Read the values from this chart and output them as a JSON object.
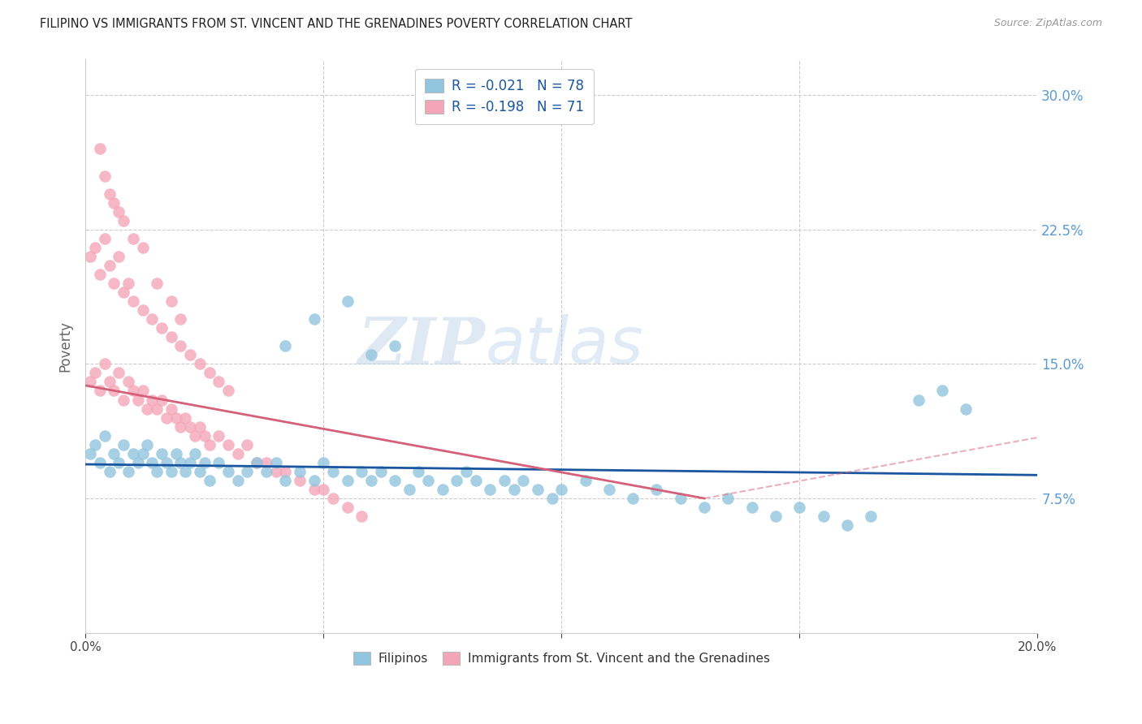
{
  "title": "FILIPINO VS IMMIGRANTS FROM ST. VINCENT AND THE GRENADINES POVERTY CORRELATION CHART",
  "source": "Source: ZipAtlas.com",
  "ylabel": "Poverty",
  "yaxis_labels": [
    "7.5%",
    "15.0%",
    "22.5%",
    "30.0%"
  ],
  "yaxis_values": [
    0.075,
    0.15,
    0.225,
    0.3
  ],
  "xlim": [
    0.0,
    0.2
  ],
  "ylim": [
    0.0,
    0.32
  ],
  "watermark_zip": "ZIP",
  "watermark_atlas": "atlas",
  "legend_r1": "-0.021",
  "legend_n1": "78",
  "legend_r2": "-0.198",
  "legend_n2": "71",
  "color_blue": "#92C5DE",
  "color_pink": "#F4A6B8",
  "color_blue_line": "#1A56A0",
  "color_pink_line": "#D4607A",
  "label1": "Filipinos",
  "label2": "Immigrants from St. Vincent and the Grenadines",
  "blue_x": [
    0.001,
    0.002,
    0.003,
    0.004,
    0.005,
    0.006,
    0.007,
    0.008,
    0.009,
    0.01,
    0.011,
    0.012,
    0.013,
    0.014,
    0.015,
    0.016,
    0.017,
    0.018,
    0.019,
    0.02,
    0.021,
    0.022,
    0.023,
    0.024,
    0.025,
    0.026,
    0.028,
    0.03,
    0.032,
    0.034,
    0.036,
    0.038,
    0.04,
    0.042,
    0.045,
    0.048,
    0.05,
    0.052,
    0.055,
    0.058,
    0.06,
    0.062,
    0.065,
    0.068,
    0.07,
    0.072,
    0.075,
    0.078,
    0.08,
    0.082,
    0.085,
    0.088,
    0.09,
    0.092,
    0.095,
    0.098,
    0.1,
    0.105,
    0.11,
    0.115,
    0.12,
    0.125,
    0.13,
    0.135,
    0.14,
    0.145,
    0.15,
    0.155,
    0.16,
    0.165,
    0.042,
    0.048,
    0.055,
    0.06,
    0.065,
    0.175,
    0.18,
    0.185
  ],
  "blue_y": [
    0.1,
    0.105,
    0.095,
    0.11,
    0.09,
    0.1,
    0.095,
    0.105,
    0.09,
    0.1,
    0.095,
    0.1,
    0.105,
    0.095,
    0.09,
    0.1,
    0.095,
    0.09,
    0.1,
    0.095,
    0.09,
    0.095,
    0.1,
    0.09,
    0.095,
    0.085,
    0.095,
    0.09,
    0.085,
    0.09,
    0.095,
    0.09,
    0.095,
    0.085,
    0.09,
    0.085,
    0.095,
    0.09,
    0.085,
    0.09,
    0.085,
    0.09,
    0.085,
    0.08,
    0.09,
    0.085,
    0.08,
    0.085,
    0.09,
    0.085,
    0.08,
    0.085,
    0.08,
    0.085,
    0.08,
    0.075,
    0.08,
    0.085,
    0.08,
    0.075,
    0.08,
    0.075,
    0.07,
    0.075,
    0.07,
    0.065,
    0.07,
    0.065,
    0.06,
    0.065,
    0.16,
    0.175,
    0.185,
    0.155,
    0.16,
    0.13,
    0.135,
    0.125
  ],
  "pink_x": [
    0.001,
    0.002,
    0.003,
    0.004,
    0.005,
    0.006,
    0.007,
    0.008,
    0.009,
    0.01,
    0.011,
    0.012,
    0.013,
    0.014,
    0.015,
    0.016,
    0.017,
    0.018,
    0.019,
    0.02,
    0.021,
    0.022,
    0.023,
    0.024,
    0.025,
    0.026,
    0.028,
    0.03,
    0.032,
    0.034,
    0.036,
    0.038,
    0.04,
    0.042,
    0.045,
    0.048,
    0.05,
    0.052,
    0.055,
    0.058,
    0.001,
    0.002,
    0.003,
    0.004,
    0.005,
    0.006,
    0.007,
    0.008,
    0.009,
    0.01,
    0.012,
    0.014,
    0.016,
    0.018,
    0.02,
    0.022,
    0.024,
    0.026,
    0.028,
    0.03,
    0.003,
    0.004,
    0.005,
    0.006,
    0.007,
    0.008,
    0.01,
    0.012,
    0.015,
    0.018,
    0.02
  ],
  "pink_y": [
    0.14,
    0.145,
    0.135,
    0.15,
    0.14,
    0.135,
    0.145,
    0.13,
    0.14,
    0.135,
    0.13,
    0.135,
    0.125,
    0.13,
    0.125,
    0.13,
    0.12,
    0.125,
    0.12,
    0.115,
    0.12,
    0.115,
    0.11,
    0.115,
    0.11,
    0.105,
    0.11,
    0.105,
    0.1,
    0.105,
    0.095,
    0.095,
    0.09,
    0.09,
    0.085,
    0.08,
    0.08,
    0.075,
    0.07,
    0.065,
    0.21,
    0.215,
    0.2,
    0.22,
    0.205,
    0.195,
    0.21,
    0.19,
    0.195,
    0.185,
    0.18,
    0.175,
    0.17,
    0.165,
    0.16,
    0.155,
    0.15,
    0.145,
    0.14,
    0.135,
    0.27,
    0.255,
    0.245,
    0.24,
    0.235,
    0.23,
    0.22,
    0.215,
    0.195,
    0.185,
    0.175
  ],
  "blue_line_x": [
    0.0,
    0.2
  ],
  "blue_line_y": [
    0.094,
    0.088
  ],
  "pink_line_x": [
    0.0,
    0.13
  ],
  "pink_line_y": [
    0.138,
    0.075
  ]
}
